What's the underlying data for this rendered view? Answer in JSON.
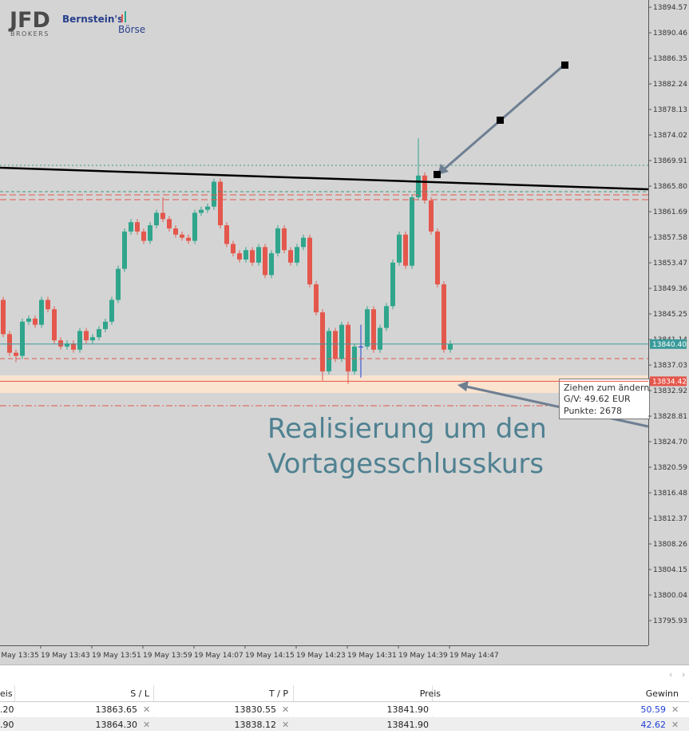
{
  "logo": {
    "brand": "JFD",
    "sub": "BROKERS",
    "partner1": "Bernstein's",
    "partner2": "Börse"
  },
  "chart_data": {
    "type": "candlestick",
    "up_color": "#2fa58c",
    "down_color": "#e4574c",
    "doji_color": "#1f3fd0",
    "ylim": [
      13791.95,
      13895.73
    ],
    "yticks": [
      13894.57,
      13890.46,
      13886.35,
      13882.24,
      13878.13,
      13874.02,
      13869.91,
      {
        "value": 13865.8,
        "label": "13865.80"
      },
      13861.69,
      13857.58,
      13853.47,
      13849.36,
      13845.25,
      13841.14,
      13837.03,
      13832.92,
      13828.81,
      {
        "value": 13824.7,
        "label": "13824.70"
      },
      13820.59,
      13816.48,
      13812.37,
      13808.26,
      13804.15,
      13800.04,
      13795.93
    ],
    "xticks": [
      "19 May 13:35",
      "19 May 13:43",
      "19 May 13:51",
      "19 May 13:59",
      "19 May 14:07",
      "19 May 14:15",
      "19 May 14:23",
      "19 May 14:31",
      "19 May 14:39",
      "19 May 14:47"
    ],
    "price_lines": [
      {
        "value": 13840.4,
        "label": "13840.40",
        "color": "#3a9a9a"
      },
      {
        "value": 13834.42,
        "label": "13834.42",
        "color": "#e4574c"
      }
    ],
    "annotation": [
      "Realisierung um den",
      "Vortagesschlusskurs"
    ],
    "tooltip": [
      "Ziehen zum ändern",
      "G/V: 49.62 EUR",
      "Punkte: 2678"
    ],
    "candles": [
      [
        13847.5,
        13848,
        13841.5,
        13842
      ],
      [
        13842,
        13842.5,
        13838.5,
        13839
      ],
      [
        13839,
        13839.5,
        13837.5,
        13838.5
      ],
      [
        13838.5,
        13844.5,
        13838,
        13844
      ],
      [
        13844,
        13845,
        13843.5,
        13844.5
      ],
      [
        13844.5,
        13845,
        13843,
        13843.5
      ],
      [
        13843.5,
        13848,
        13843,
        13847.5
      ],
      [
        13847.5,
        13848,
        13845.5,
        13846
      ],
      [
        13846,
        13846.5,
        13840.5,
        13841
      ],
      [
        13841,
        13841.5,
        13839.5,
        13840
      ],
      [
        13840,
        13841,
        13839.5,
        13840.5
      ],
      [
        13840.5,
        13841,
        13839,
        13839.5
      ],
      [
        13839.5,
        13843,
        13839,
        13842.5
      ],
      [
        13842.5,
        13843,
        13840.5,
        13841
      ],
      [
        13841,
        13842,
        13840.5,
        13841.5
      ],
      [
        13841.5,
        13843.3,
        13841,
        13842.8
      ],
      [
        13842.8,
        13844.5,
        13842.3,
        13844
      ],
      [
        13844,
        13848,
        13843.5,
        13847.5
      ],
      [
        13847.5,
        13853,
        13847,
        13852.5
      ],
      [
        13852.5,
        13859,
        13852,
        13858.5
      ],
      [
        13858.5,
        13860.5,
        13858,
        13860
      ],
      [
        13860,
        13860.5,
        13858,
        13858.5
      ],
      [
        13858.5,
        13859,
        13856.5,
        13857
      ],
      [
        13857,
        13860,
        13856.5,
        13859.5
      ],
      [
        13859.5,
        13862,
        13859,
        13861.5
      ],
      [
        13861.5,
        13864,
        13860,
        13860.5
      ],
      [
        13860.5,
        13861,
        13858.5,
        13859
      ],
      [
        13859,
        13859.5,
        13857.5,
        13858
      ],
      [
        13858,
        13858.5,
        13857,
        13857.5
      ],
      [
        13857.5,
        13858,
        13856.5,
        13857
      ],
      [
        13857,
        13862,
        13856.5,
        13861.5
      ],
      [
        13861.5,
        13862.5,
        13861,
        13862
      ],
      [
        13862,
        13863,
        13861.5,
        13862.5
      ],
      [
        13862.5,
        13867,
        13862,
        13866.5
      ],
      [
        13866.5,
        13867,
        13859,
        13859.5
      ],
      [
        13859.5,
        13860,
        13856,
        13856.5
      ],
      [
        13856.5,
        13857,
        13854.5,
        13855
      ],
      [
        13855,
        13855.5,
        13853.5,
        13854
      ],
      [
        13854,
        13856,
        13853.5,
        13855.5
      ],
      [
        13855.5,
        13856,
        13853,
        13853.5
      ],
      [
        13853.5,
        13856.5,
        13853,
        13856
      ],
      [
        13856,
        13856.5,
        13851,
        13851.5
      ],
      [
        13851.5,
        13855.5,
        13851,
        13855
      ],
      [
        13855,
        13859.5,
        13854.5,
        13859
      ],
      [
        13859,
        13859.5,
        13855,
        13855.5
      ],
      [
        13855.5,
        13856,
        13853,
        13853.5
      ],
      [
        13853.5,
        13856.5,
        13853,
        13856
      ],
      [
        13856,
        13858,
        13855.5,
        13857.5
      ],
      [
        13857.5,
        13858,
        13849.5,
        13850
      ],
      [
        13850,
        13850.5,
        13845,
        13845.5
      ],
      [
        13845.5,
        13846,
        13834.5,
        13836
      ],
      [
        13836,
        13843,
        13835.5,
        13842.5
      ],
      [
        13842.5,
        13843,
        13837.5,
        13838
      ],
      [
        13838,
        13844,
        13837.5,
        13843.5
      ],
      [
        13843.5,
        13844,
        13834,
        13836
      ],
      [
        13836,
        13840.5,
        13835.5,
        13840
      ],
      [
        13840,
        13843.5,
        13835,
        13840
      ],
      [
        13840,
        13846.5,
        13839.5,
        13846
      ],
      [
        13846,
        13846.5,
        13839,
        13839.5
      ],
      [
        13839.5,
        13843.5,
        13839,
        13843
      ],
      [
        13843,
        13847,
        13842.5,
        13846.5
      ],
      [
        13846.5,
        13854,
        13846,
        13853.5
      ],
      [
        13853.5,
        13858.5,
        13853,
        13858
      ],
      [
        13858,
        13858.5,
        13852.5,
        13853
      ],
      [
        13853,
        13864.5,
        13852.5,
        13864
      ],
      [
        13864,
        13873.5,
        13863.5,
        13867.5
      ],
      [
        13867.5,
        13868,
        13863,
        13863.5
      ],
      [
        13863.5,
        13864,
        13858,
        13858.5
      ],
      [
        13858.5,
        13859,
        13849.5,
        13850
      ],
      [
        13850,
        13850.5,
        13839,
        13839.5
      ],
      [
        13839.5,
        13841,
        13839,
        13840.4
      ]
    ]
  },
  "table": {
    "header": [
      "eis",
      "S / L",
      "T / P",
      "Preis",
      "Gewinn"
    ],
    "rows": [
      [
        ".20",
        "13863.65",
        "13830.55",
        "13841.90",
        "50.59"
      ],
      [
        ".90",
        "13864.30",
        "13838.12",
        "13841.90",
        "42.62"
      ]
    ]
  }
}
